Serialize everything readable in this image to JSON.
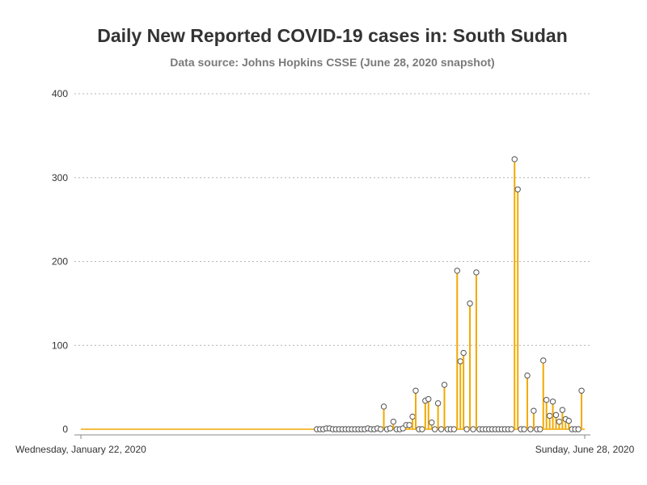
{
  "chart_data": {
    "type": "line",
    "title": "Daily New Reported COVID-19 cases in: South Sudan",
    "subtitle": "Data source: Johns Hopkins CSSE (June 28, 2020 snapshot)",
    "xlabel": "",
    "ylabel": "",
    "x_start_label": "Wednesday, January 22, 2020",
    "x_end_label": "Sunday, June 28, 2020",
    "x_start": "2020-01-22",
    "x_end": "2020-06-28",
    "first_marker_date": "2020-04-05",
    "ylim": [
      0,
      400
    ],
    "yticks": [
      "0",
      "100",
      "200",
      "300",
      "400"
    ],
    "ytick_values": [
      0,
      100,
      200,
      300,
      400
    ],
    "grid": true,
    "style": "needle",
    "colors": {
      "series": "#f2a900",
      "marker_stroke": "#555555",
      "baseline": "#f2a900"
    },
    "series": [
      {
        "values": [
          0,
          0,
          0,
          1,
          1,
          0,
          0,
          0,
          0,
          0,
          0,
          0,
          0,
          0,
          0,
          0,
          1,
          0,
          0,
          1,
          0,
          27,
          0,
          1,
          9,
          0,
          0,
          1,
          5,
          5,
          15,
          46,
          0,
          0,
          34,
          36,
          8,
          0,
          31,
          0,
          53,
          0,
          0,
          0,
          189,
          81,
          91,
          0,
          150,
          0,
          187,
          0,
          0,
          0,
          0,
          0,
          0,
          0,
          0,
          0,
          0,
          0,
          322,
          286,
          0,
          0,
          64,
          0,
          22,
          0,
          0,
          82,
          35,
          16,
          33,
          17,
          9,
          23,
          12,
          10,
          0,
          0,
          0,
          46
        ]
      }
    ]
  }
}
